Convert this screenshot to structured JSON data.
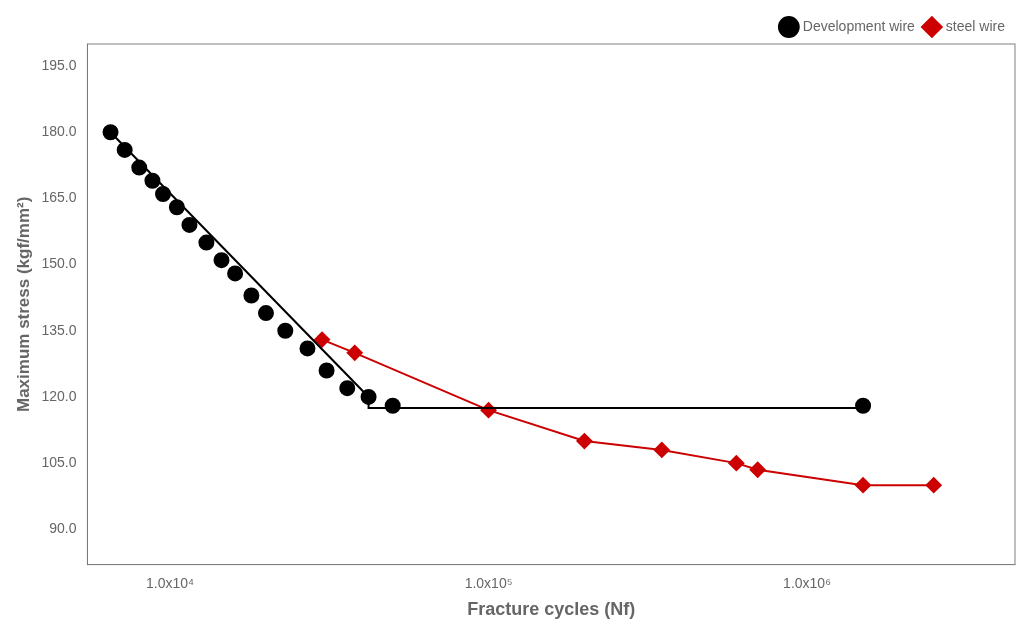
{
  "chart_data": {
    "type": "scatter",
    "xlabel": "Fracture cycles (Nf)",
    "ylabel": "Maximum stress (kgf/mm²)",
    "log": "x",
    "grid": false,
    "legend": "upper right",
    "xlim": [
      5500,
      4500000
    ],
    "ylim": [
      82,
      200
    ],
    "xticks": [
      {
        "value": 10000,
        "label": "1.0x10⁴"
      },
      {
        "value": 100000,
        "label": "1.0x10⁵"
      },
      {
        "value": 1000000,
        "label": "1.0x10⁶"
      }
    ],
    "yticks": [
      {
        "value": 90.0,
        "label": "90.0"
      },
      {
        "value": 105.0,
        "label": "105.0"
      },
      {
        "value": 120.0,
        "label": "120.0"
      },
      {
        "value": 135.0,
        "label": "135.0"
      },
      {
        "value": 150.0,
        "label": "150.0"
      },
      {
        "value": 165.0,
        "label": "165.0"
      },
      {
        "value": 180.0,
        "label": "180.0"
      },
      {
        "value": 195.0,
        "label": "195.0"
      }
    ],
    "series": [
      {
        "type": "line",
        "color": "#000000",
        "x": [
          6500,
          42000,
          42000,
          1500000
        ],
        "values": [
          180,
          120,
          117.5,
          117.5
        ]
      },
      {
        "type": "scatter",
        "name": "Development wire",
        "color": "#000000",
        "marker": "circle",
        "x": [
          6500,
          7200,
          8000,
          8800,
          9500,
          10500,
          11500,
          13000,
          14500,
          16000,
          18000,
          20000,
          23000,
          27000,
          31000,
          36000,
          42000,
          50000,
          1500000
        ],
        "values": [
          180,
          176,
          172,
          169,
          166,
          163,
          159,
          155,
          151,
          148,
          143,
          139,
          135,
          131,
          126,
          122,
          120,
          118,
          118
        ]
      },
      {
        "type": "line",
        "name": "steel wire",
        "color": "#cc0000",
        "marker": "diamond",
        "x": [
          30000,
          38000,
          100000,
          200000,
          350000,
          600000,
          700000,
          1500000,
          2500000
        ],
        "values": [
          133,
          130,
          117,
          110,
          108,
          105,
          103.5,
          100,
          100
        ]
      }
    ]
  }
}
